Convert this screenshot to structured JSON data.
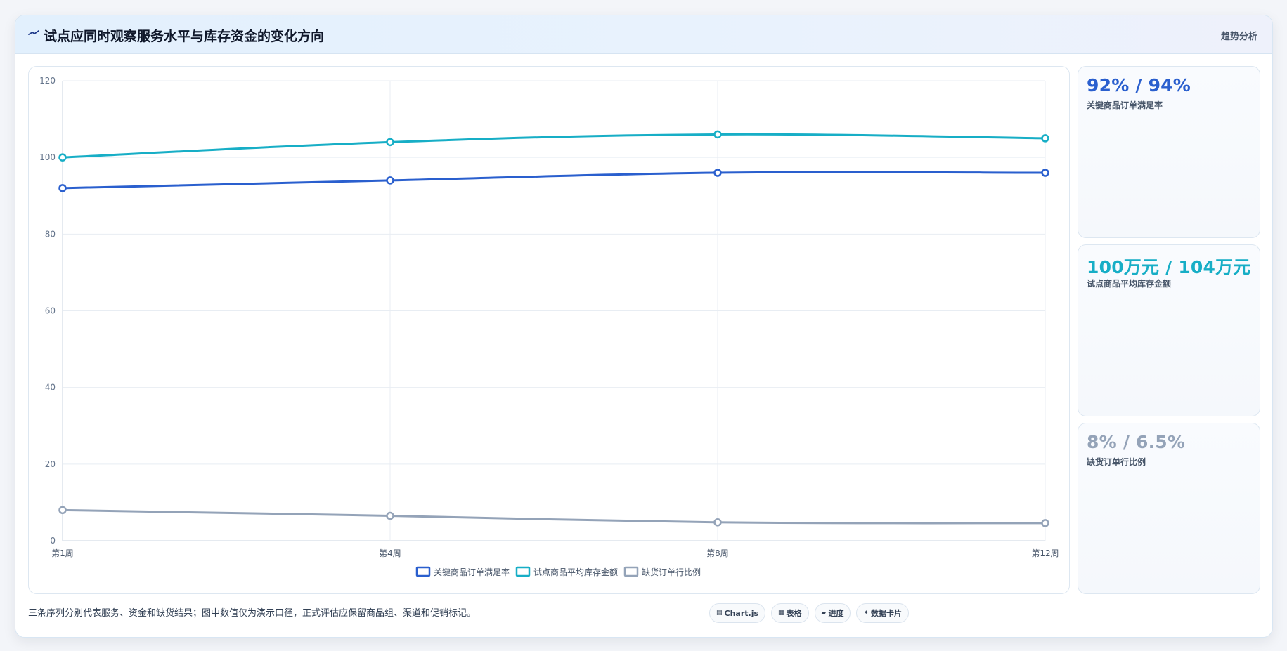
{
  "header": {
    "title": "试点应同时观察服务水平与库存资金的变化方向",
    "tag": "趋势分析",
    "icon": "trend-line-icon"
  },
  "chart_data": {
    "type": "line",
    "categories": [
      "第1周",
      "第4周",
      "第8周",
      "第12周"
    ],
    "ylim": [
      0,
      120
    ],
    "yticks": [
      0,
      20,
      40,
      60,
      80,
      100,
      120
    ],
    "grid": true,
    "legend": "bottom",
    "series": [
      {
        "name": "关键商品订单满足率",
        "values": [
          92,
          94,
          96,
          96
        ],
        "color": "#2a5fce"
      },
      {
        "name": "试点商品平均库存金额",
        "values": [
          100,
          104,
          106,
          105
        ],
        "color": "#17aec6"
      },
      {
        "name": "缺货订单行比例",
        "values": [
          8,
          6.5,
          4.8,
          4.6
        ],
        "color": "#94a3b8"
      }
    ]
  },
  "kpis": [
    {
      "value": "92% / 94%",
      "label": "关键商品订单满足率",
      "color": "#2a5fce"
    },
    {
      "value": "100万元 / 104万元",
      "label": "试点商品平均库存金额",
      "color": "#17aec6"
    },
    {
      "value": "8% / 6.5%",
      "label": "缺货订单行比例",
      "color": "#94a3b8"
    }
  ],
  "footnote": "三条序列分别代表服务、资金和缺货结果；图中数值仅为演示口径，正式评估应保留商品组、渠道和促销标记。",
  "chips": [
    {
      "icon": "chart-icon",
      "glyph": "▤",
      "label": "Chart.js"
    },
    {
      "icon": "table-icon",
      "glyph": "▦",
      "label": "表格"
    },
    {
      "icon": "progress-icon",
      "glyph": "▰",
      "label": "进度"
    },
    {
      "icon": "card-icon",
      "glyph": "✦",
      "label": "数据卡片"
    }
  ]
}
